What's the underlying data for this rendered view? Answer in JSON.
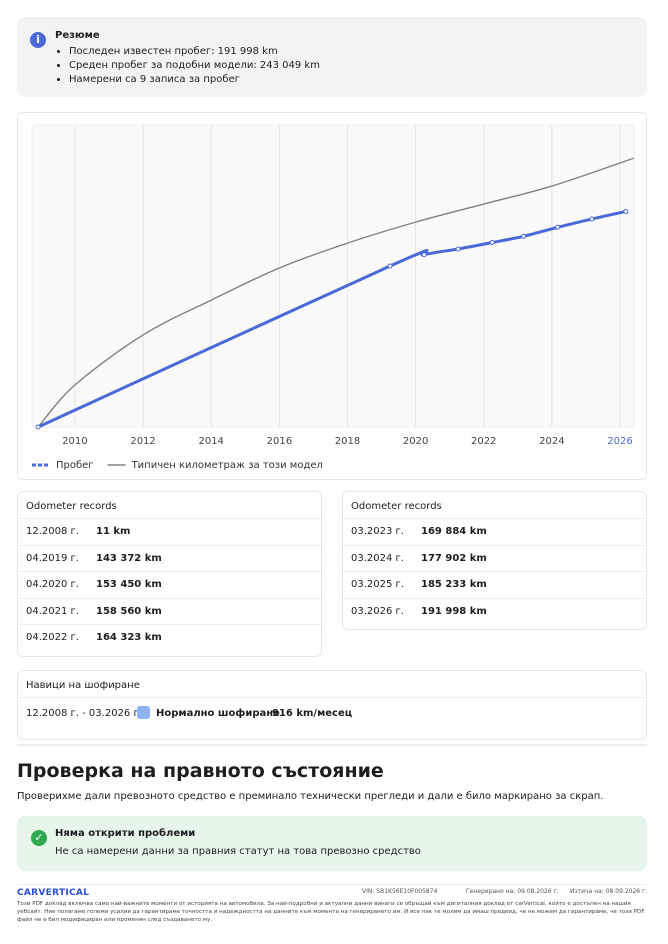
{
  "summary": {
    "title": "Резюме",
    "items": [
      "Последен известен пробег: 191 998 km",
      "Среден пробег за подобни модели: 243 049 km",
      "Намерени са 9 записа за пробег"
    ]
  },
  "chart_data": {
    "type": "line",
    "xlim": [
      2008.74,
      2026.41
    ],
    "ylim": [
      0,
      269000
    ],
    "xticks": [
      2010,
      2012,
      2014,
      2016,
      2018,
      2020,
      2022,
      2024,
      2026
    ],
    "grid": true,
    "series": [
      {
        "name": "Пробег",
        "color": "#4a68d8",
        "x": [
          2008.92,
          2019.25,
          2020.25,
          2021.25,
          2022.25,
          2023.17,
          2024.17,
          2025.17,
          2026.17
        ],
        "values": [
          11,
          143372,
          153450,
          158560,
          164323,
          169884,
          177902,
          185233,
          191998
        ]
      },
      {
        "name": "Типичен километраж за този модел",
        "color": "#808080",
        "x": [
          2008.92,
          2010,
          2012,
          2014,
          2016,
          2018,
          2020,
          2022,
          2024,
          2026.41
        ],
        "values": [
          0,
          37400,
          82000,
          113000,
          141600,
          163800,
          182500,
          198600,
          214600,
          239500
        ]
      }
    ]
  },
  "odometer_left": {
    "title": "Odometer records",
    "rows": [
      [
        "12.2008 г.",
        "11 km"
      ],
      [
        "04.2019 г.",
        "143 372 km"
      ],
      [
        "04.2020 г.",
        "153 450 km"
      ],
      [
        "04.2021 г.",
        "158 560 km"
      ],
      [
        "04.2022 г.",
        "164 323 km"
      ]
    ]
  },
  "odometer_right": {
    "title": "Odometer records",
    "rows": [
      [
        "03.2023 г.",
        "169 884 km"
      ],
      [
        "03.2024 г.",
        "177 902 km"
      ],
      [
        "03.2025 г.",
        "185 233 km"
      ],
      [
        "03.2026 г.",
        "191 998 km"
      ]
    ]
  },
  "driving": {
    "title": "Навици на шофиране",
    "period": "12.2008 г. - 03.2026 г.",
    "style": "Нормално шофиране",
    "rate": "916 km/месец"
  },
  "legal": {
    "title": "Проверка на правното състояние",
    "description": "Проверихме дали превозното средство е преминало технически прегледи и дали е било маркирано за скрап.",
    "status_title": "Няма открити проблеми",
    "status_text": "Не са намерени данни за правния статут на това превозно средство"
  },
  "footer": {
    "logo": "CARVERTICAL",
    "vin": "VIN: SB1K56E10F005874",
    "generated": "Генерирано на: 09.08.2026 г.",
    "expires": "Изтича на: 08.09.2026 г.",
    "disclaimer": "Този PDF доклад включва само най-важните моменти от историята на автомобила. За най-подробни и актуални данни винаги се обръщай към дигиталния доклад от carVertical, който е достъпен на нашия уебсайт. Ние полагаме големи усилия да гарантираме точността и надеждността на данните към момента на генерирането им. И все пак те молим да имаш предвид, че не можем да гарантираме, че този PDF файл не е бил модифициран или променян след създаването му."
  }
}
